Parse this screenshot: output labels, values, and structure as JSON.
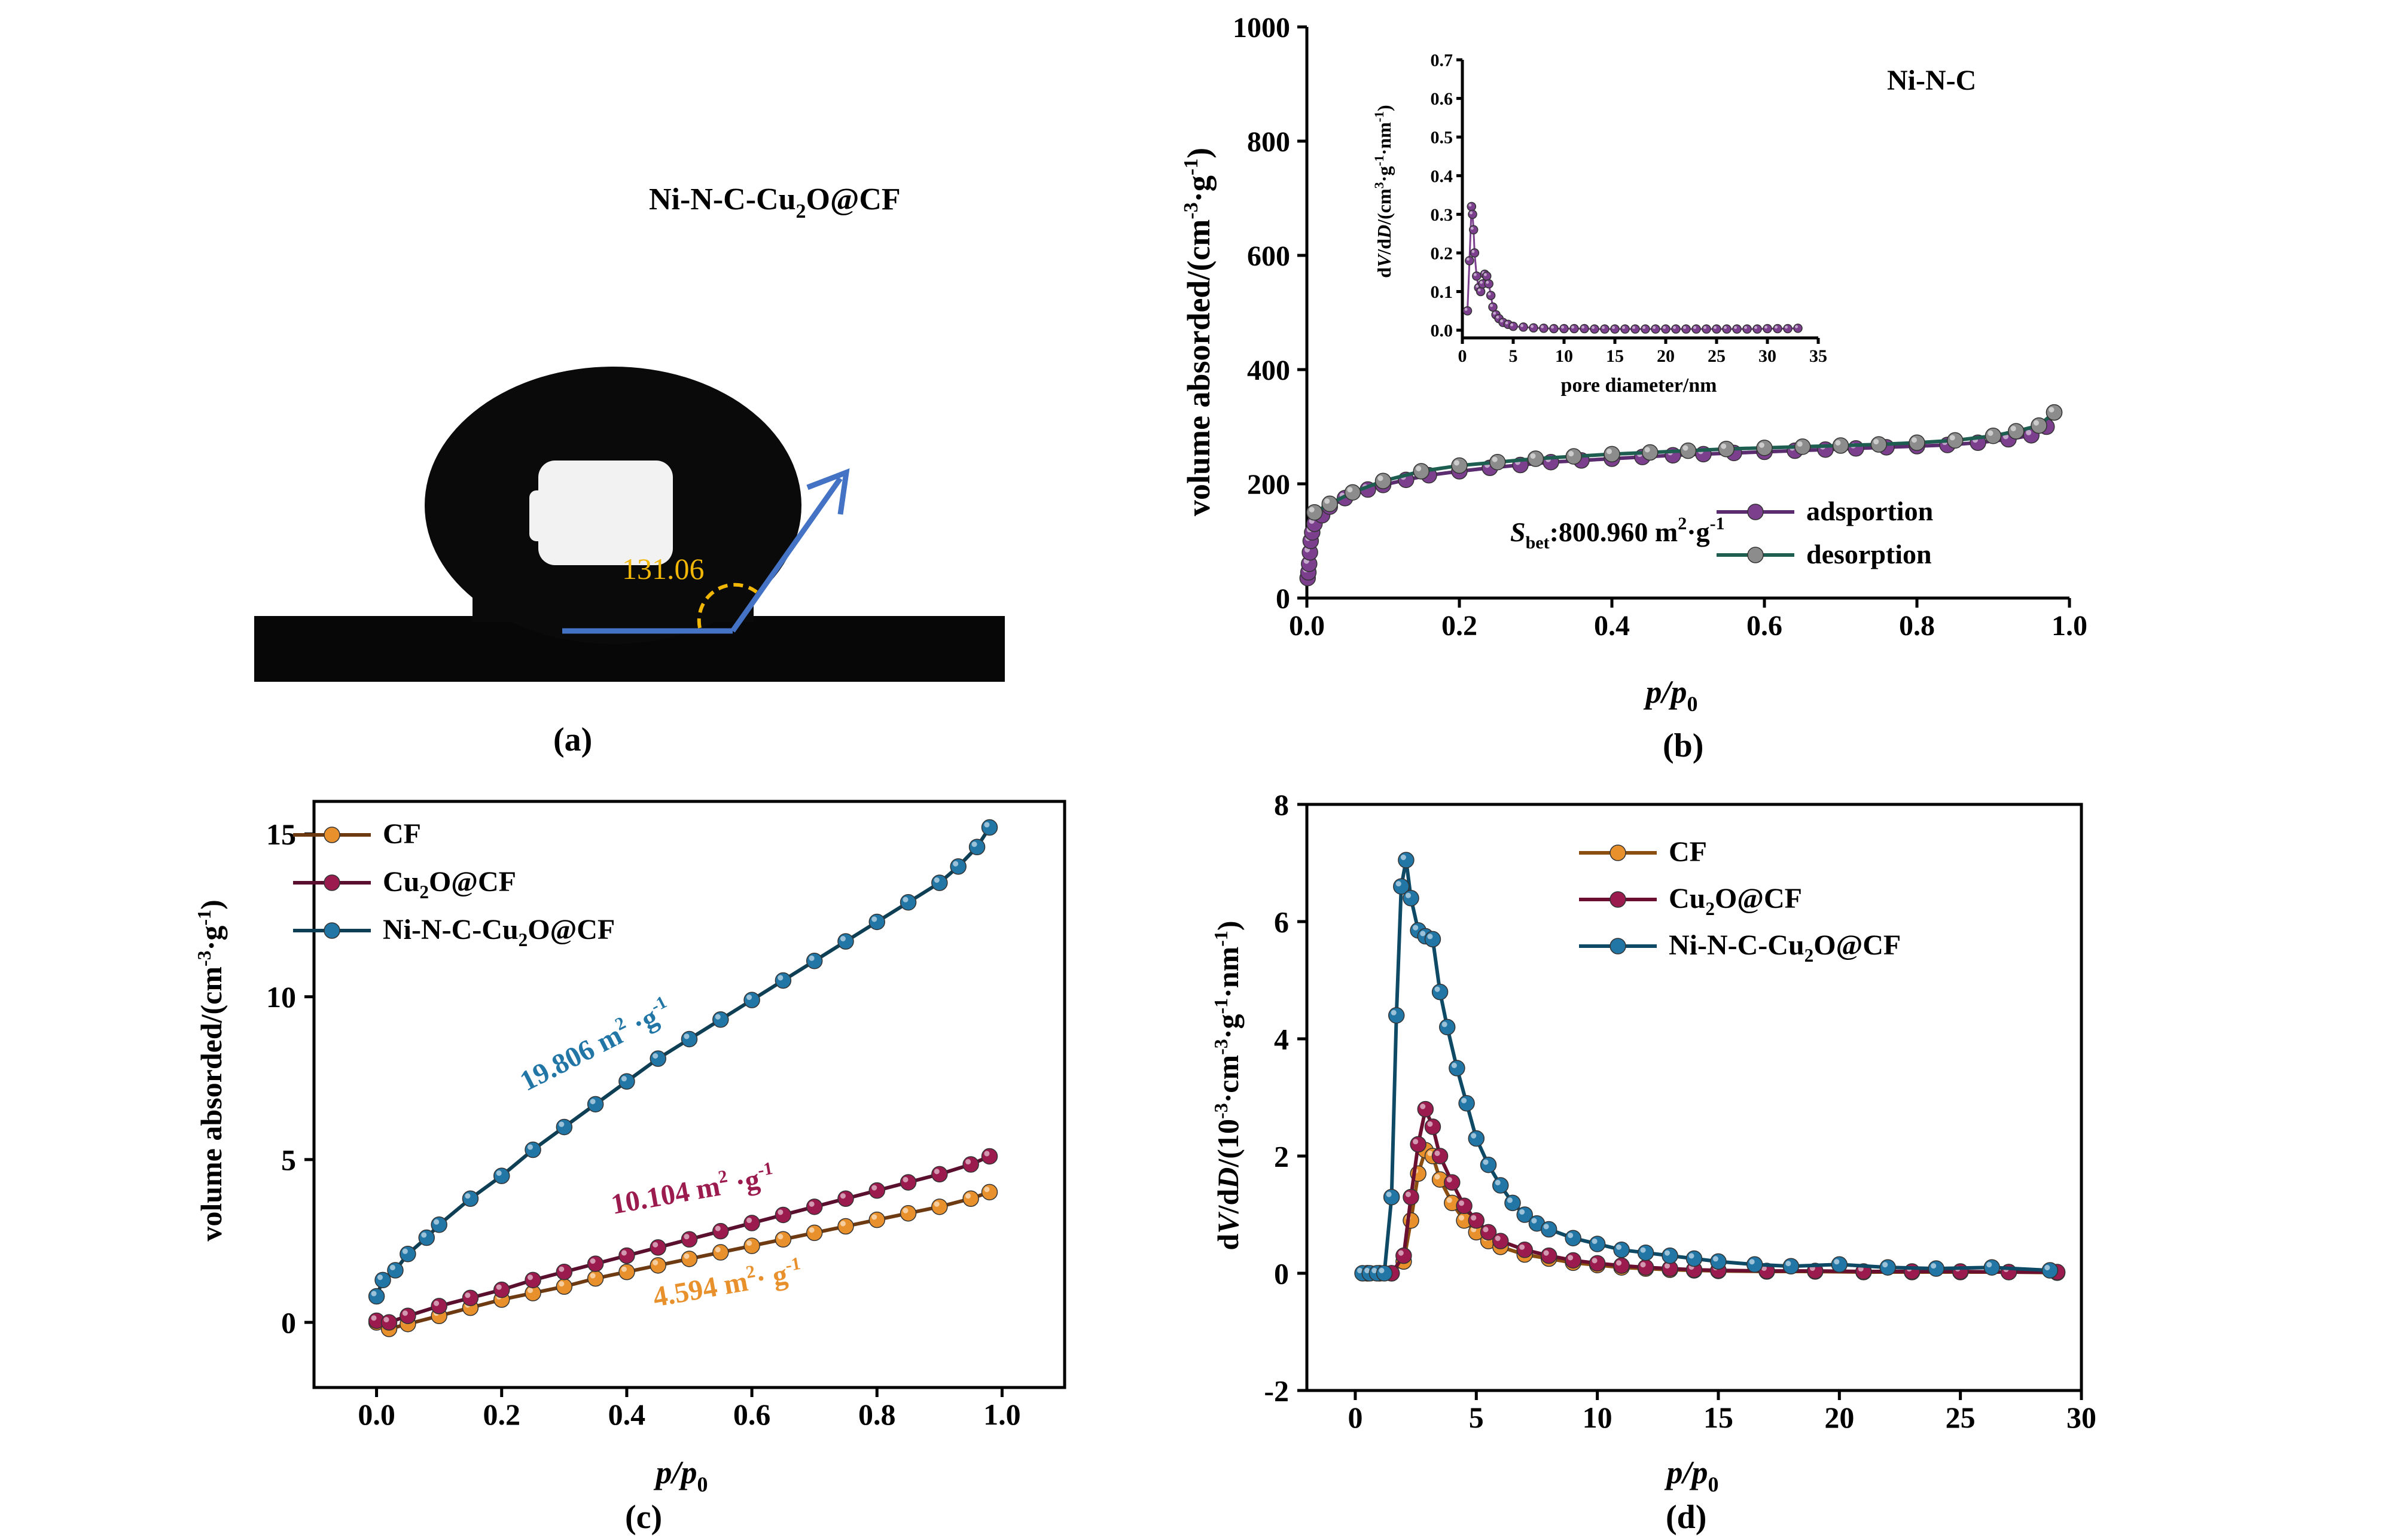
{
  "panels": {
    "a": {
      "label": "(a)",
      "sample_label": "Ni-N-C-Cu",
      "sample_sub": "2",
      "sample_tail": "O@CF",
      "angle": "131.06",
      "colors": {
        "arrow": "#4472C4",
        "angle": "#F2B705",
        "drop": "#0a0a0a"
      }
    },
    "b": {
      "label": "(b)",
      "sample": "Ni-N-C"
    },
    "c": {
      "label": "(c)"
    },
    "d": {
      "label": "(d)"
    }
  },
  "chart_data": [
    {
      "id": "b",
      "type": "line",
      "xlabel": {
        "main": "p/p",
        "sub": "0"
      },
      "ylabel": {
        "pre": "volume absorded/(cm",
        "sup1": "-3",
        "mid": "·g",
        "sup2": "-1",
        "post": ")"
      },
      "xlim": [
        0,
        1.0
      ],
      "ylim": [
        0,
        1000
      ],
      "xticks": [
        "0.0",
        "0.2",
        "0.4",
        "0.6",
        "0.8",
        "1.0"
      ],
      "yticks": [
        "0",
        "200",
        "400",
        "600",
        "800",
        "1000"
      ],
      "annotation": {
        "pre": "S",
        "sub": "bet",
        "post": ":800.960 m",
        "sup1": "2",
        "mid": "·g",
        "sup2": "-1"
      },
      "legend": [
        "adsportion",
        "desorption"
      ],
      "series": [
        {
          "name": "adsportion",
          "color": "#7B3F8E",
          "line": "#5B2C6F",
          "x": [
            0.001,
            0.002,
            0.003,
            0.004,
            0.005,
            0.007,
            0.01,
            0.02,
            0.03,
            0.05,
            0.08,
            0.1,
            0.13,
            0.16,
            0.2,
            0.24,
            0.28,
            0.32,
            0.36,
            0.4,
            0.44,
            0.48,
            0.52,
            0.56,
            0.6,
            0.64,
            0.68,
            0.72,
            0.76,
            0.8,
            0.84,
            0.88,
            0.92,
            0.95,
            0.97,
            0.98
          ],
          "y": [
            35,
            45,
            60,
            80,
            100,
            115,
            130,
            145,
            160,
            175,
            190,
            198,
            207,
            215,
            222,
            228,
            233,
            238,
            241,
            244,
            247,
            250,
            252,
            254,
            256,
            258,
            260,
            262,
            264,
            266,
            268,
            272,
            278,
            285,
            300,
            325
          ]
        },
        {
          "name": "desorption",
          "color": "#8C8C8C",
          "line": "#1E5E50",
          "x": [
            0.98,
            0.96,
            0.93,
            0.9,
            0.85,
            0.8,
            0.75,
            0.7,
            0.65,
            0.6,
            0.55,
            0.5,
            0.45,
            0.4,
            0.35,
            0.3,
            0.25,
            0.2,
            0.15,
            0.1,
            0.06,
            0.03,
            0.01
          ],
          "y": [
            325,
            302,
            292,
            284,
            276,
            272,
            269,
            267,
            265,
            263,
            261,
            258,
            255,
            252,
            248,
            244,
            238,
            232,
            222,
            205,
            185,
            165,
            150
          ]
        }
      ]
    },
    {
      "id": "b-inset",
      "type": "line",
      "xlabel": "pore diameter/nm",
      "ylabel": {
        "pre": "d",
        "v": "V",
        "mid": "/d",
        "d": "D",
        "paren": "/(cm",
        "sup1": "3",
        "g": "·g",
        "sup2": "-1",
        "nm": "·nm",
        "sup3": "-1",
        "post": ")"
      },
      "xlim": [
        0,
        35
      ],
      "ylim": [
        -0.02,
        0.7
      ],
      "xticks": [
        "0",
        "5",
        "10",
        "15",
        "20",
        "25",
        "30",
        "35"
      ],
      "yticks": [
        "0.0",
        "0.1",
        "0.2",
        "0.3",
        "0.4",
        "0.5",
        "0.6",
        "0.7"
      ],
      "series": [
        {
          "name": "",
          "color": "#7B3F8E",
          "x": [
            0.5,
            0.7,
            0.9,
            1.0,
            1.1,
            1.2,
            1.4,
            1.6,
            1.8,
            2.0,
            2.2,
            2.4,
            2.6,
            2.8,
            3.0,
            3.3,
            3.6,
            4.0,
            4.5,
            5.0,
            6,
            7,
            8,
            9,
            10,
            11,
            12,
            13,
            14,
            15,
            16,
            17,
            18,
            19,
            20,
            21,
            22,
            23,
            24,
            25,
            26,
            27,
            28,
            29,
            30,
            31,
            32,
            33
          ],
          "y": [
            0.05,
            0.18,
            0.32,
            0.3,
            0.26,
            0.2,
            0.14,
            0.11,
            0.1,
            0.12,
            0.145,
            0.14,
            0.12,
            0.09,
            0.06,
            0.04,
            0.03,
            0.02,
            0.015,
            0.01,
            0.008,
            0.006,
            0.005,
            0.004,
            0.004,
            0.004,
            0.004,
            0.003,
            0.003,
            0.003,
            0.003,
            0.003,
            0.003,
            0.003,
            0.003,
            0.003,
            0.003,
            0.003,
            0.003,
            0.003,
            0.003,
            0.003,
            0.003,
            0.003,
            0.004,
            0.004,
            0.004,
            0.005
          ]
        }
      ]
    },
    {
      "id": "c",
      "type": "line",
      "xlabel": {
        "main": "p/p",
        "sub": "0"
      },
      "ylabel": {
        "pre": "volume absorded/(cm",
        "sup1": "-3",
        "mid": "·g",
        "sup2": "-1",
        "post": ")"
      },
      "xlim": [
        -0.1,
        1.1
      ],
      "ylim": [
        -2,
        16
      ],
      "xticks": [
        "0.0",
        "0.2",
        "0.4",
        "0.6",
        "0.8",
        "1.0"
      ],
      "yticks": [
        "0",
        "5",
        "10",
        "15"
      ],
      "legend": [
        {
          "pre": "CF",
          "sub": "",
          "post": ""
        },
        {
          "pre": "Cu",
          "sub": "2",
          "post": "O@CF"
        },
        {
          "pre": "Ni-N-C-Cu",
          "sub": "2",
          "post": "O@CF"
        }
      ],
      "annotations": [
        {
          "pre": "19.806 m",
          "sup1": "2",
          "mid": " ·g",
          "sup2": "-1",
          "color": "#2176A6"
        },
        {
          "pre": "10.104 m",
          "sup1": "2",
          "mid": " ·g",
          "sup2": "-1",
          "color": "#9B1B4E"
        },
        {
          "pre": "4.594 m",
          "sup1": "2",
          "mid": "· g",
          "sup2": "-1",
          "color": "#E8902B"
        }
      ],
      "series": [
        {
          "name": "CF",
          "color": "#E8902B",
          "line": "#6E3A12",
          "x": [
            0.0,
            0.02,
            0.05,
            0.1,
            0.15,
            0.2,
            0.25,
            0.3,
            0.35,
            0.4,
            0.45,
            0.5,
            0.55,
            0.6,
            0.65,
            0.7,
            0.75,
            0.8,
            0.85,
            0.9,
            0.95,
            0.98
          ],
          "y": [
            0.0,
            -0.2,
            -0.05,
            0.2,
            0.45,
            0.7,
            0.9,
            1.1,
            1.35,
            1.55,
            1.75,
            1.95,
            2.15,
            2.35,
            2.55,
            2.75,
            2.95,
            3.15,
            3.35,
            3.55,
            3.8,
            4.0
          ]
        },
        {
          "name": "Cu2O@CF",
          "color": "#9B1B4E",
          "line": "#5A0F2E",
          "x": [
            0.0,
            0.02,
            0.05,
            0.1,
            0.15,
            0.2,
            0.25,
            0.3,
            0.35,
            0.4,
            0.45,
            0.5,
            0.55,
            0.6,
            0.65,
            0.7,
            0.75,
            0.8,
            0.85,
            0.9,
            0.95,
            0.98
          ],
          "y": [
            0.05,
            0.0,
            0.2,
            0.5,
            0.75,
            1.0,
            1.3,
            1.55,
            1.8,
            2.05,
            2.3,
            2.55,
            2.8,
            3.05,
            3.3,
            3.55,
            3.8,
            4.05,
            4.3,
            4.55,
            4.85,
            5.1
          ]
        },
        {
          "name": "Ni-N-C-Cu2O@CF",
          "color": "#2176A6",
          "line": "#0E3F55",
          "x": [
            0.0,
            0.01,
            0.03,
            0.05,
            0.08,
            0.1,
            0.15,
            0.2,
            0.25,
            0.3,
            0.35,
            0.4,
            0.45,
            0.5,
            0.55,
            0.6,
            0.65,
            0.7,
            0.75,
            0.8,
            0.85,
            0.9,
            0.93,
            0.96,
            0.98
          ],
          "y": [
            0.8,
            1.3,
            1.6,
            2.1,
            2.6,
            3.0,
            3.8,
            4.5,
            5.3,
            6.0,
            6.7,
            7.4,
            8.1,
            8.7,
            9.3,
            9.9,
            10.5,
            11.1,
            11.7,
            12.3,
            12.9,
            13.5,
            14.0,
            14.6,
            15.2
          ]
        }
      ]
    },
    {
      "id": "d",
      "type": "line",
      "xlabel": {
        "main": "p/p",
        "sub": "0"
      },
      "ylabel": {
        "pre": "d",
        "v": "V",
        "mid": "/d",
        "d": "D",
        "paren": "/(10",
        "sup1": "-3",
        "cm": "·cm",
        "sup2": "-3",
        "g": "·g",
        "sup3": "-1",
        "nm": "·nm",
        "sup4": "-1",
        "post": ")"
      },
      "xlim": [
        -2,
        30
      ],
      "ylim": [
        -2,
        8
      ],
      "xticks": [
        "0",
        "5",
        "10",
        "15",
        "20",
        "25",
        "30"
      ],
      "yticks": [
        "-2",
        "0",
        "2",
        "4",
        "6",
        "8"
      ],
      "legend": [
        {
          "pre": "CF",
          "sub": "",
          "post": ""
        },
        {
          "pre": "Cu",
          "sub": "2",
          "post": "O@CF"
        },
        {
          "pre": "Ni-N-C-Cu",
          "sub": "2",
          "post": "O@CF"
        }
      ],
      "series": [
        {
          "name": "CF",
          "color": "#E8902B",
          "line": "#8A4E10",
          "x": [
            0.5,
            1.0,
            1.5,
            2.0,
            2.3,
            2.6,
            2.9,
            3.2,
            3.5,
            4.0,
            4.5,
            5.0,
            5.5,
            6.0,
            7.0,
            8.0,
            9.0,
            10,
            11,
            12,
            13,
            14,
            15,
            17,
            19,
            21,
            23,
            25,
            27,
            29
          ],
          "y": [
            0.0,
            0.0,
            0.0,
            0.2,
            0.9,
            1.7,
            2.1,
            2.0,
            1.6,
            1.2,
            0.9,
            0.7,
            0.55,
            0.45,
            0.32,
            0.25,
            0.18,
            0.14,
            0.1,
            0.08,
            0.06,
            0.05,
            0.04,
            0.03,
            0.03,
            0.02,
            0.02,
            0.02,
            0.02,
            0.01
          ]
        },
        {
          "name": "Cu2O@CF",
          "color": "#9B1B4E",
          "line": "#6A0F30",
          "x": [
            0.5,
            1.0,
            1.5,
            2.0,
            2.3,
            2.6,
            2.9,
            3.2,
            3.5,
            4.0,
            4.5,
            5.0,
            5.5,
            6.0,
            7.0,
            8.0,
            9.0,
            10,
            11,
            12,
            13,
            14,
            15,
            17,
            19,
            21,
            23,
            25,
            27,
            29
          ],
          "y": [
            0.0,
            0.0,
            0.0,
            0.3,
            1.3,
            2.2,
            2.8,
            2.5,
            2.0,
            1.55,
            1.15,
            0.9,
            0.7,
            0.55,
            0.4,
            0.3,
            0.22,
            0.17,
            0.13,
            0.1,
            0.08,
            0.06,
            0.05,
            0.04,
            0.04,
            0.03,
            0.03,
            0.03,
            0.02,
            0.02
          ]
        },
        {
          "name": "Ni-N-C-Cu2O@CF",
          "color": "#2176A6",
          "line": "#0E4A66",
          "x": [
            0.3,
            0.6,
            0.9,
            1.2,
            1.5,
            1.7,
            1.9,
            2.1,
            2.3,
            2.6,
            2.9,
            3.2,
            3.5,
            3.8,
            4.2,
            4.6,
            5.0,
            5.5,
            6.0,
            6.5,
            7.0,
            7.5,
            8.0,
            9.0,
            10,
            11,
            12,
            13,
            14,
            15,
            16.5,
            18,
            20,
            22,
            24,
            26.3,
            28.7
          ],
          "y": [
            0.0,
            0.0,
            0.0,
            0.0,
            1.3,
            4.4,
            6.6,
            7.05,
            6.4,
            5.85,
            5.75,
            5.7,
            4.8,
            4.2,
            3.5,
            2.9,
            2.3,
            1.85,
            1.5,
            1.2,
            1.0,
            0.85,
            0.75,
            0.6,
            0.5,
            0.4,
            0.35,
            0.3,
            0.25,
            0.2,
            0.15,
            0.12,
            0.15,
            0.1,
            0.08,
            0.1,
            0.05
          ]
        }
      ]
    }
  ]
}
